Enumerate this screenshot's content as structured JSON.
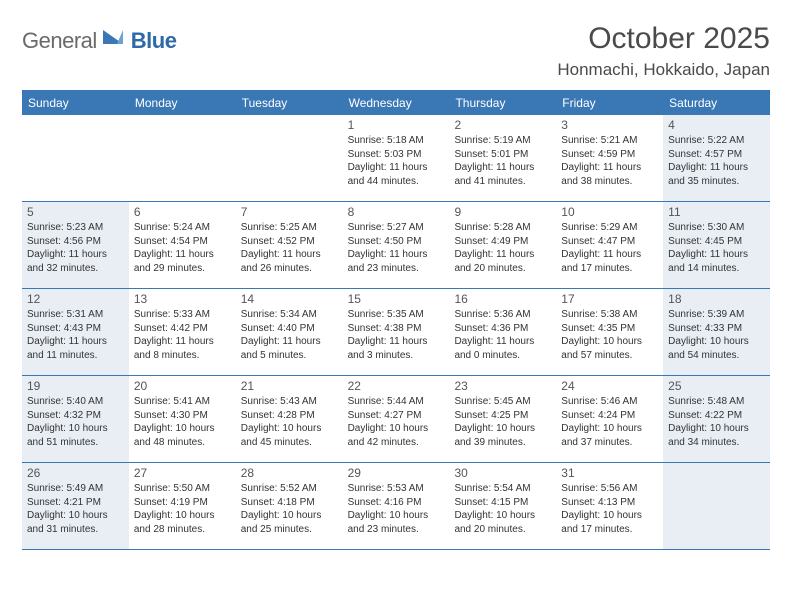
{
  "logo": {
    "textGeneral": "General",
    "textBlue": "Blue"
  },
  "header": {
    "month": "October 2025",
    "location": "Honmachi, Hokkaido, Japan"
  },
  "colors": {
    "headerBar": "#3a78b5",
    "shaded": "#e9eef5",
    "border": "#3a78b5",
    "text": "#333333",
    "logoGray": "#6a6a6a",
    "logoBlue": "#2f6aa8"
  },
  "weekdays": [
    "Sunday",
    "Monday",
    "Tuesday",
    "Wednesday",
    "Thursday",
    "Friday",
    "Saturday"
  ],
  "weeks": [
    [
      {
        "blank": true
      },
      {
        "blank": true
      },
      {
        "blank": true
      },
      {
        "n": "1",
        "sr": "Sunrise: 5:18 AM",
        "ss": "Sunset: 5:03 PM",
        "d1": "Daylight: 11 hours",
        "d2": "and 44 minutes."
      },
      {
        "n": "2",
        "sr": "Sunrise: 5:19 AM",
        "ss": "Sunset: 5:01 PM",
        "d1": "Daylight: 11 hours",
        "d2": "and 41 minutes."
      },
      {
        "n": "3",
        "sr": "Sunrise: 5:21 AM",
        "ss": "Sunset: 4:59 PM",
        "d1": "Daylight: 11 hours",
        "d2": "and 38 minutes."
      },
      {
        "n": "4",
        "sr": "Sunrise: 5:22 AM",
        "ss": "Sunset: 4:57 PM",
        "d1": "Daylight: 11 hours",
        "d2": "and 35 minutes.",
        "sh": true
      }
    ],
    [
      {
        "n": "5",
        "sr": "Sunrise: 5:23 AM",
        "ss": "Sunset: 4:56 PM",
        "d1": "Daylight: 11 hours",
        "d2": "and 32 minutes.",
        "sh": true
      },
      {
        "n": "6",
        "sr": "Sunrise: 5:24 AM",
        "ss": "Sunset: 4:54 PM",
        "d1": "Daylight: 11 hours",
        "d2": "and 29 minutes."
      },
      {
        "n": "7",
        "sr": "Sunrise: 5:25 AM",
        "ss": "Sunset: 4:52 PM",
        "d1": "Daylight: 11 hours",
        "d2": "and 26 minutes."
      },
      {
        "n": "8",
        "sr": "Sunrise: 5:27 AM",
        "ss": "Sunset: 4:50 PM",
        "d1": "Daylight: 11 hours",
        "d2": "and 23 minutes."
      },
      {
        "n": "9",
        "sr": "Sunrise: 5:28 AM",
        "ss": "Sunset: 4:49 PM",
        "d1": "Daylight: 11 hours",
        "d2": "and 20 minutes."
      },
      {
        "n": "10",
        "sr": "Sunrise: 5:29 AM",
        "ss": "Sunset: 4:47 PM",
        "d1": "Daylight: 11 hours",
        "d2": "and 17 minutes."
      },
      {
        "n": "11",
        "sr": "Sunrise: 5:30 AM",
        "ss": "Sunset: 4:45 PM",
        "d1": "Daylight: 11 hours",
        "d2": "and 14 minutes.",
        "sh": true
      }
    ],
    [
      {
        "n": "12",
        "sr": "Sunrise: 5:31 AM",
        "ss": "Sunset: 4:43 PM",
        "d1": "Daylight: 11 hours",
        "d2": "and 11 minutes.",
        "sh": true
      },
      {
        "n": "13",
        "sr": "Sunrise: 5:33 AM",
        "ss": "Sunset: 4:42 PM",
        "d1": "Daylight: 11 hours",
        "d2": "and 8 minutes."
      },
      {
        "n": "14",
        "sr": "Sunrise: 5:34 AM",
        "ss": "Sunset: 4:40 PM",
        "d1": "Daylight: 11 hours",
        "d2": "and 5 minutes."
      },
      {
        "n": "15",
        "sr": "Sunrise: 5:35 AM",
        "ss": "Sunset: 4:38 PM",
        "d1": "Daylight: 11 hours",
        "d2": "and 3 minutes."
      },
      {
        "n": "16",
        "sr": "Sunrise: 5:36 AM",
        "ss": "Sunset: 4:36 PM",
        "d1": "Daylight: 11 hours",
        "d2": "and 0 minutes."
      },
      {
        "n": "17",
        "sr": "Sunrise: 5:38 AM",
        "ss": "Sunset: 4:35 PM",
        "d1": "Daylight: 10 hours",
        "d2": "and 57 minutes."
      },
      {
        "n": "18",
        "sr": "Sunrise: 5:39 AM",
        "ss": "Sunset: 4:33 PM",
        "d1": "Daylight: 10 hours",
        "d2": "and 54 minutes.",
        "sh": true
      }
    ],
    [
      {
        "n": "19",
        "sr": "Sunrise: 5:40 AM",
        "ss": "Sunset: 4:32 PM",
        "d1": "Daylight: 10 hours",
        "d2": "and 51 minutes.",
        "sh": true
      },
      {
        "n": "20",
        "sr": "Sunrise: 5:41 AM",
        "ss": "Sunset: 4:30 PM",
        "d1": "Daylight: 10 hours",
        "d2": "and 48 minutes."
      },
      {
        "n": "21",
        "sr": "Sunrise: 5:43 AM",
        "ss": "Sunset: 4:28 PM",
        "d1": "Daylight: 10 hours",
        "d2": "and 45 minutes."
      },
      {
        "n": "22",
        "sr": "Sunrise: 5:44 AM",
        "ss": "Sunset: 4:27 PM",
        "d1": "Daylight: 10 hours",
        "d2": "and 42 minutes."
      },
      {
        "n": "23",
        "sr": "Sunrise: 5:45 AM",
        "ss": "Sunset: 4:25 PM",
        "d1": "Daylight: 10 hours",
        "d2": "and 39 minutes."
      },
      {
        "n": "24",
        "sr": "Sunrise: 5:46 AM",
        "ss": "Sunset: 4:24 PM",
        "d1": "Daylight: 10 hours",
        "d2": "and 37 minutes."
      },
      {
        "n": "25",
        "sr": "Sunrise: 5:48 AM",
        "ss": "Sunset: 4:22 PM",
        "d1": "Daylight: 10 hours",
        "d2": "and 34 minutes.",
        "sh": true
      }
    ],
    [
      {
        "n": "26",
        "sr": "Sunrise: 5:49 AM",
        "ss": "Sunset: 4:21 PM",
        "d1": "Daylight: 10 hours",
        "d2": "and 31 minutes.",
        "sh": true
      },
      {
        "n": "27",
        "sr": "Sunrise: 5:50 AM",
        "ss": "Sunset: 4:19 PM",
        "d1": "Daylight: 10 hours",
        "d2": "and 28 minutes."
      },
      {
        "n": "28",
        "sr": "Sunrise: 5:52 AM",
        "ss": "Sunset: 4:18 PM",
        "d1": "Daylight: 10 hours",
        "d2": "and 25 minutes."
      },
      {
        "n": "29",
        "sr": "Sunrise: 5:53 AM",
        "ss": "Sunset: 4:16 PM",
        "d1": "Daylight: 10 hours",
        "d2": "and 23 minutes."
      },
      {
        "n": "30",
        "sr": "Sunrise: 5:54 AM",
        "ss": "Sunset: 4:15 PM",
        "d1": "Daylight: 10 hours",
        "d2": "and 20 minutes."
      },
      {
        "n": "31",
        "sr": "Sunrise: 5:56 AM",
        "ss": "Sunset: 4:13 PM",
        "d1": "Daylight: 10 hours",
        "d2": "and 17 minutes."
      },
      {
        "blank": true,
        "sh": true
      }
    ]
  ]
}
